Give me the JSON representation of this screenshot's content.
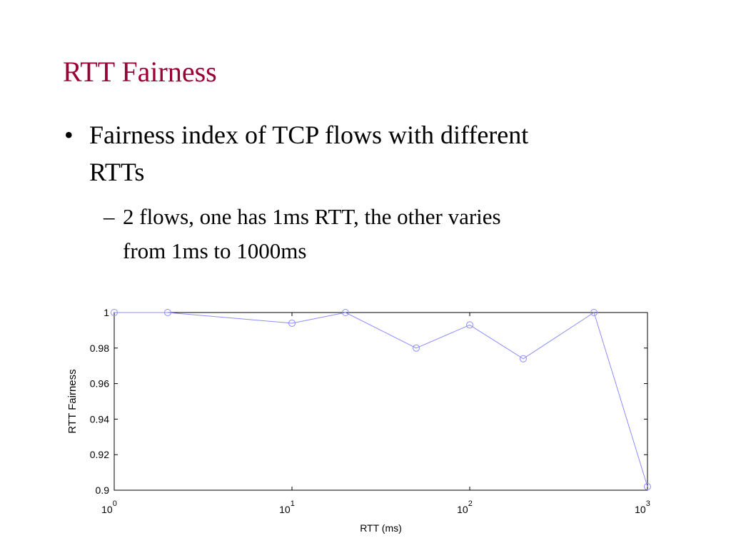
{
  "slide": {
    "title": "RTT Fairness",
    "bullets": [
      {
        "marker": "•",
        "lines": [
          "Fairness index of TCP flows with different",
          "RTTs"
        ]
      },
      {
        "marker": "–",
        "lines": [
          "2 flows, one has 1ms RTT, the other varies",
          "from 1ms to 1000ms"
        ]
      }
    ]
  },
  "chart_data": {
    "type": "line",
    "xlabel": "RTT (ms)",
    "ylabel": "RTT Fairness",
    "x": [
      1,
      2,
      10,
      20,
      50,
      100,
      200,
      500,
      1000
    ],
    "series": [
      {
        "color": "#8c8cff",
        "values": [
          1.0,
          1.0,
          0.994,
          1.0,
          0.98,
          0.993,
          0.974,
          1.0,
          0.902
        ]
      }
    ],
    "xscale": "log",
    "xlim": [
      1,
      1000
    ],
    "xticks": [
      {
        "value": 1,
        "label": "10",
        "exponent": "0"
      },
      {
        "value": 10,
        "label": "10",
        "exponent": "1"
      },
      {
        "value": 100,
        "label": "10",
        "exponent": "2"
      },
      {
        "value": 1000,
        "label": "10",
        "exponent": "3"
      }
    ],
    "ylim": [
      0.9,
      1
    ],
    "yticks": [
      0.9,
      0.92,
      0.94,
      0.96,
      0.98,
      1
    ],
    "marker": "circle"
  }
}
